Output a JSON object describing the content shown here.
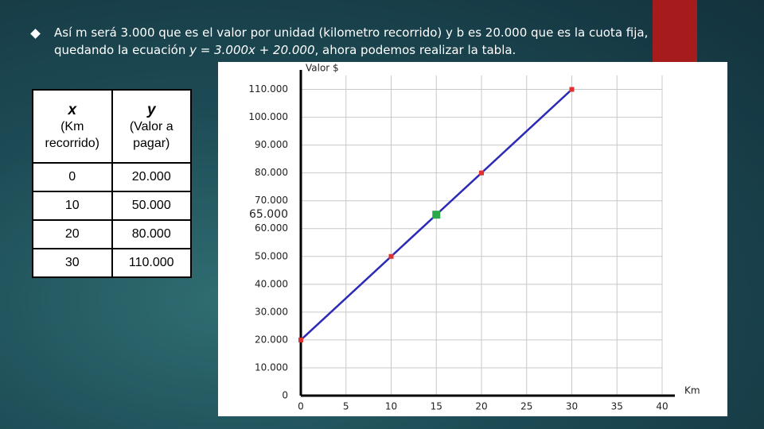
{
  "slide": {
    "text_before": "Así m será 3.000 que es el valor por unidad (kilometro recorrido) y b es 20.000 que es la cuota fija, quedando la ecuación ",
    "equation": "y = 3.000x + 20.000",
    "text_after": ", ahora podemos realizar la tabla."
  },
  "table": {
    "header": [
      {
        "var": "x",
        "desc": "(Km recorrido)"
      },
      {
        "var": "y",
        "desc": "(Valor a pagar)"
      }
    ],
    "rows": [
      [
        "0",
        "20.000"
      ],
      [
        "10",
        "50.000"
      ],
      [
        "20",
        "80.000"
      ],
      [
        "30",
        "110.000"
      ]
    ]
  },
  "chart_data": {
    "type": "line",
    "y_label": "Valor $",
    "x_label": "Km",
    "x": [
      0,
      10,
      20,
      30
    ],
    "series": [
      {
        "color": "#2b2bb8",
        "marker_color": "#e03030",
        "values": [
          20000,
          50000,
          80000,
          110000
        ]
      }
    ],
    "highlight": {
      "x": 15,
      "y": 65000,
      "label": "65.000",
      "color": "#2aa84a"
    },
    "xlim": [
      0,
      40
    ],
    "ylim": [
      0,
      115000
    ],
    "xticks": [
      0,
      5,
      10,
      15,
      20,
      25,
      30,
      35,
      40
    ],
    "yticks": [
      0,
      {
        "value": 10000,
        "label": "10.000"
      },
      {
        "value": 20000,
        "label": "20.000"
      },
      {
        "value": 30000,
        "label": "30.000"
      },
      {
        "value": 40000,
        "label": "40.000"
      },
      {
        "value": 50000,
        "label": "50.000"
      },
      {
        "value": 60000,
        "label": "60.000"
      },
      {
        "value": 70000,
        "label": "70.000"
      },
      {
        "value": 80000,
        "label": "80.000"
      },
      {
        "value": 90000,
        "label": "90.000"
      },
      {
        "value": 100000,
        "label": "100.000"
      },
      {
        "value": 110000,
        "label": "110.000"
      }
    ],
    "grid": true
  }
}
